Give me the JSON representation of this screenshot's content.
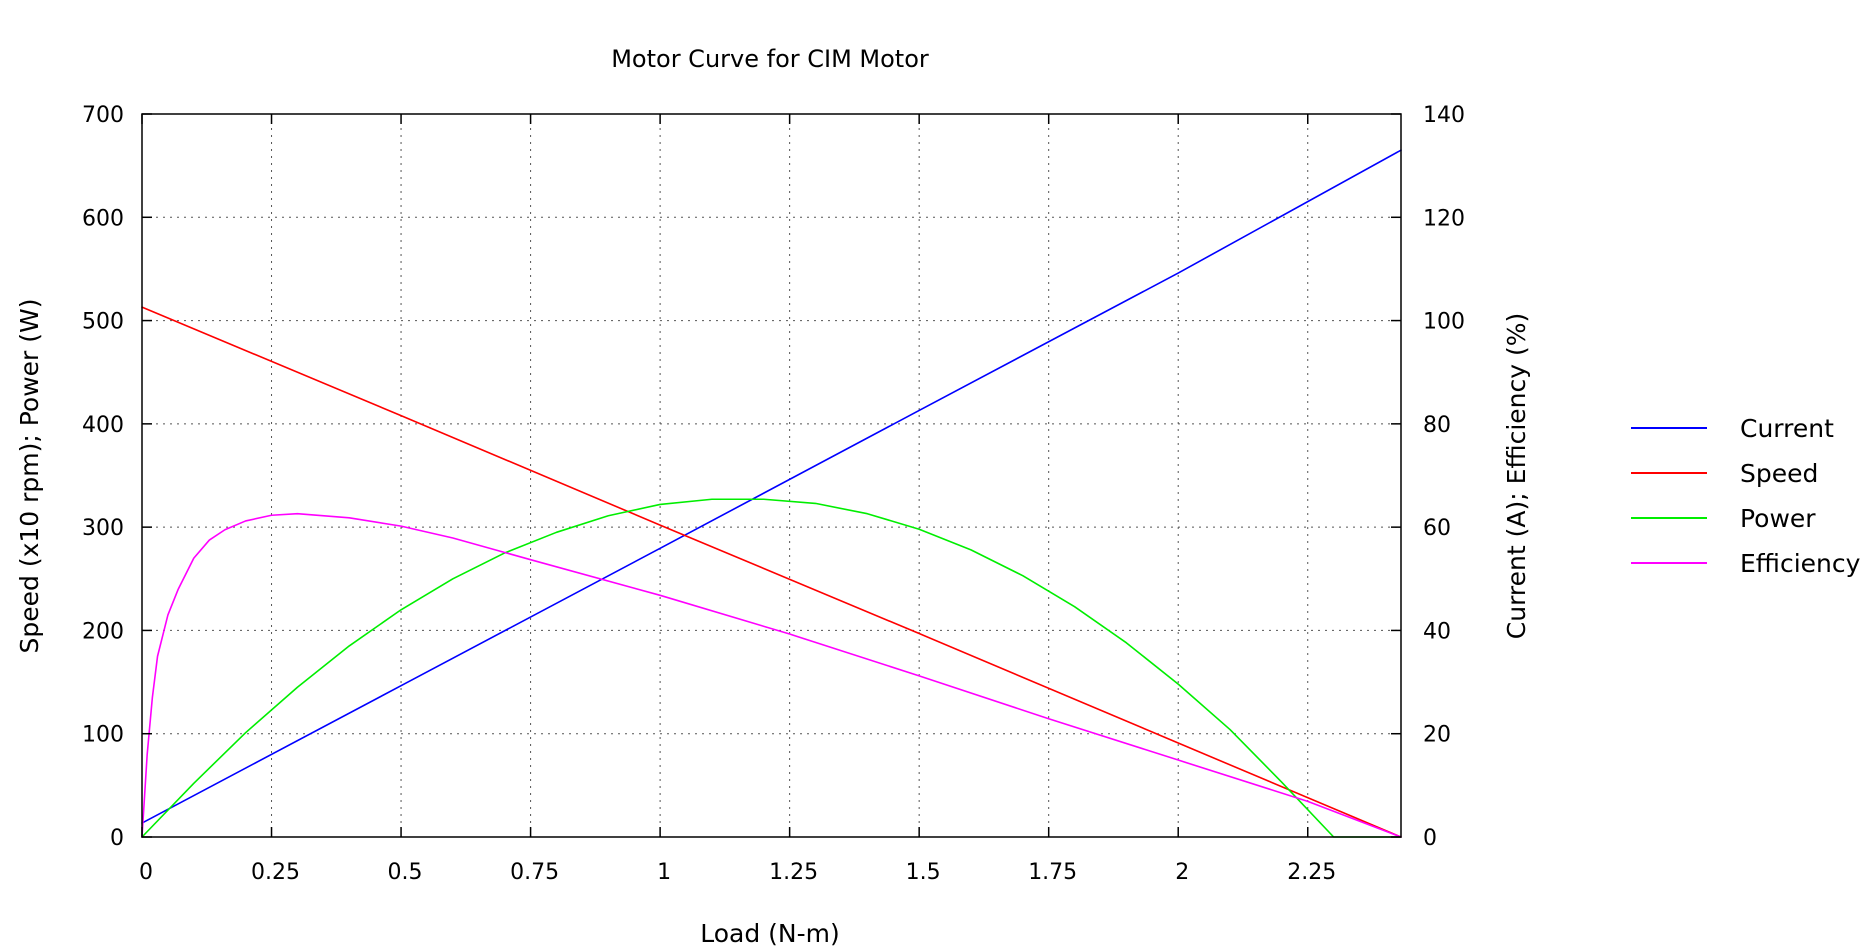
{
  "chart_data": {
    "type": "line",
    "title": "Motor Curve for CIM Motor",
    "xlabel": "Load (N-m)",
    "ylabel": "Speed (x10 rpm); Power (W)",
    "y2label": "Current (A); Efficiency (%)",
    "xlim": [
      0,
      2.43
    ],
    "ylim": [
      0,
      700
    ],
    "y2lim": [
      0,
      140
    ],
    "xticks": [
      0,
      0.25,
      0.5,
      0.75,
      1,
      1.25,
      1.5,
      1.75,
      2,
      2.25
    ],
    "xtick_labels": [
      "0",
      "0.25",
      "0.5",
      "0.75",
      "1",
      "1.25",
      "1.5",
      "1.75",
      "2",
      "2.25"
    ],
    "yticks": [
      0,
      100,
      200,
      300,
      400,
      500,
      600,
      700
    ],
    "ytick_labels": [
      "0",
      "100",
      "200",
      "300",
      "400",
      "500",
      "600",
      "700"
    ],
    "y2ticks": [
      0,
      20,
      40,
      60,
      80,
      100,
      120,
      140
    ],
    "y2tick_labels": [
      "0",
      "20",
      "40",
      "60",
      "80",
      "100",
      "120",
      "140"
    ],
    "grid": true,
    "legend_position": "right",
    "series": [
      {
        "name": "Current",
        "color": "#0000ff",
        "axis": "y2",
        "x": [
          0,
          0.5,
          1.0,
          1.5,
          2.0,
          2.43
        ],
        "y": [
          2.7,
          29.3,
          55.9,
          82.6,
          109.2,
          133.0
        ]
      },
      {
        "name": "Speed",
        "color": "#ff0000",
        "axis": "y",
        "x": [
          0,
          0.5,
          1.0,
          1.5,
          2.0,
          2.43
        ],
        "y": [
          513,
          408,
          302,
          197,
          91,
          0
        ]
      },
      {
        "name": "Power",
        "color": "#00ee00",
        "axis": "y",
        "x": [
          0,
          0.1,
          0.2,
          0.3,
          0.4,
          0.5,
          0.6,
          0.7,
          0.8,
          0.9,
          1.0,
          1.1,
          1.2,
          1.3,
          1.4,
          1.5,
          1.6,
          1.7,
          1.8,
          1.9,
          2.0,
          2.1,
          2.2,
          2.3,
          2.43
        ],
        "y": [
          0,
          52,
          101,
          145,
          185,
          220,
          250,
          275,
          295,
          311,
          322,
          327,
          327,
          323,
          313,
          298,
          278,
          253,
          223,
          188,
          148,
          104,
          53,
          0,
          0
        ]
      },
      {
        "name": "Efficiency",
        "color": "#ff00ff",
        "axis": "y2",
        "x": [
          0,
          0.01,
          0.02,
          0.03,
          0.05,
          0.07,
          0.1,
          0.13,
          0.16,
          0.2,
          0.25,
          0.3,
          0.4,
          0.5,
          0.6,
          0.75,
          1.0,
          1.25,
          1.5,
          1.75,
          2.0,
          2.25,
          2.43
        ],
        "y": [
          0,
          16,
          27,
          35,
          43,
          48,
          54,
          57.5,
          59.5,
          61.2,
          62.3,
          62.6,
          61.8,
          60.2,
          57.9,
          53.7,
          46.8,
          39.3,
          31.2,
          22.9,
          14.9,
          6.9,
          0
        ]
      }
    ]
  }
}
